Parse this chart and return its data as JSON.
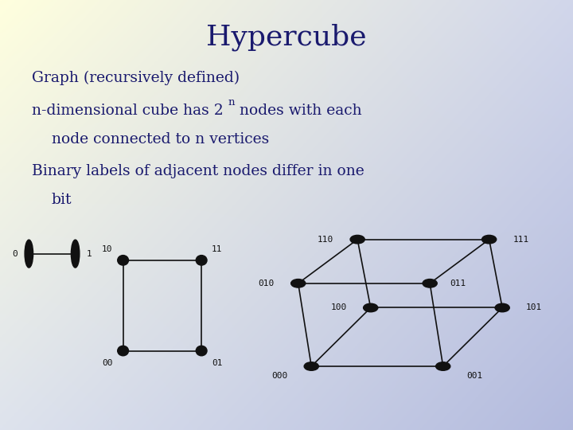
{
  "title": "Hypercube",
  "title_fontsize": 26,
  "title_color": "#1a1a6e",
  "text_color": "#1a1a6e",
  "text_fontsize": 13.5,
  "node_color": "#111111",
  "edge_color": "#111111",
  "label_fontsize": 8,
  "gradient_tl": [
    1.0,
    1.0,
    0.87
  ],
  "gradient_tr": [
    0.82,
    0.84,
    0.92
  ],
  "gradient_bl": [
    0.87,
    0.89,
    0.93
  ],
  "gradient_br": [
    0.7,
    0.73,
    0.87
  ]
}
